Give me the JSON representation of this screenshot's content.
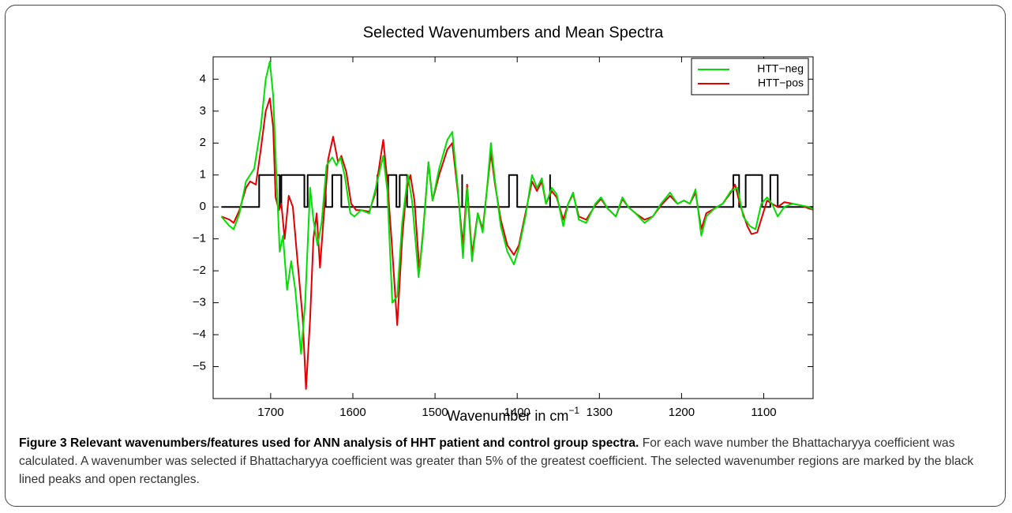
{
  "chart_data": {
    "type": "line",
    "title": "Selected Wavenumbers and Mean Spectra",
    "x_label": "Wavenumber in cm",
    "x_label_sup": "−1",
    "xlim": [
      1770,
      1040
    ],
    "xticks": [
      1700,
      1600,
      1500,
      1400,
      1300,
      1200,
      1100
    ],
    "ylim": [
      -6,
      4.7
    ],
    "yticks": [
      {
        "value": -5,
        "label": "−5"
      },
      {
        "value": -4,
        "label": "−4"
      },
      {
        "value": -3,
        "label": "−3"
      },
      {
        "value": -2,
        "label": "−2"
      },
      {
        "value": -1,
        "label": "−1"
      },
      0,
      1,
      2,
      3,
      4
    ],
    "grid": false,
    "legend": "top-right",
    "series": [
      {
        "name": "HTT−neg",
        "color": "#00e000",
        "x": [
          1760,
          1750,
          1745,
          1738,
          1730,
          1720,
          1712,
          1706,
          1701,
          1697,
          1693,
          1689,
          1685,
          1680,
          1675,
          1670,
          1663,
          1658,
          1652,
          1648,
          1643,
          1638,
          1632,
          1625,
          1620,
          1615,
          1610,
          1603,
          1598,
          1590,
          1580,
          1573,
          1563,
          1558,
          1552,
          1546,
          1540,
          1533,
          1528,
          1520,
          1515,
          1508,
          1503,
          1495,
          1485,
          1479,
          1472,
          1466,
          1461,
          1455,
          1448,
          1442,
          1437,
          1432,
          1427,
          1420,
          1412,
          1404,
          1398,
          1390,
          1382,
          1376,
          1370,
          1365,
          1358,
          1352,
          1344,
          1338,
          1332,
          1325,
          1316,
          1305,
          1298,
          1290,
          1280,
          1272,
          1265,
          1256,
          1245,
          1235,
          1225,
          1214,
          1205,
          1197,
          1190,
          1183,
          1176,
          1170,
          1160,
          1150,
          1140,
          1132,
          1125,
          1117,
          1110,
          1103,
          1096,
          1090,
          1083,
          1075,
          1065,
          1055,
          1045,
          1038
        ],
        "values": [
          -0.3,
          -0.6,
          -0.7,
          -0.2,
          0.8,
          1.2,
          2.5,
          4.0,
          4.55,
          3.5,
          1.0,
          -1.4,
          -0.9,
          -2.6,
          -1.7,
          -2.6,
          -4.6,
          -3.0,
          0.6,
          -0.4,
          -1.2,
          -0.5,
          1.3,
          1.55,
          1.3,
          1.55,
          1.0,
          -0.2,
          -0.3,
          -0.1,
          -0.2,
          0.5,
          1.6,
          0.5,
          -3.0,
          -2.8,
          -0.5,
          1.0,
          0.2,
          -2.2,
          -1.0,
          1.4,
          0.2,
          1.2,
          2.1,
          2.35,
          0.5,
          -1.6,
          0.6,
          -1.7,
          -0.2,
          -0.8,
          0.5,
          2.0,
          0.8,
          -0.6,
          -1.4,
          -1.8,
          -1.3,
          -0.3,
          1.0,
          0.6,
          0.9,
          0.1,
          0.6,
          0.4,
          -0.6,
          0.1,
          0.45,
          -0.4,
          -0.5,
          0.1,
          0.3,
          -0.05,
          -0.3,
          0.3,
          0,
          -0.2,
          -0.5,
          -0.3,
          0.1,
          0.45,
          0.1,
          0.2,
          0.1,
          0.55,
          -0.9,
          -0.3,
          -0.05,
          0.1,
          0.5,
          0.6,
          -0.3,
          -0.6,
          -0.7,
          0.1,
          0.3,
          0.1,
          -0.3,
          0,
          0.1,
          0.05,
          0,
          -0.1
        ]
      },
      {
        "name": "HTT−pos",
        "color": "#e00000",
        "x": [
          1760,
          1750,
          1745,
          1738,
          1730,
          1725,
          1718,
          1712,
          1706,
          1701,
          1697,
          1694,
          1690,
          1687,
          1683,
          1678,
          1673,
          1668,
          1661,
          1657,
          1652,
          1648,
          1644,
          1640,
          1636,
          1630,
          1624,
          1618,
          1614,
          1608,
          1602,
          1596,
          1590,
          1580,
          1573,
          1563,
          1558,
          1553,
          1546,
          1540,
          1535,
          1530,
          1525,
          1519,
          1514,
          1508,
          1503,
          1495,
          1485,
          1479,
          1472,
          1466,
          1461,
          1455,
          1448,
          1442,
          1437,
          1432,
          1427,
          1420,
          1412,
          1404,
          1398,
          1390,
          1382,
          1376,
          1370,
          1365,
          1358,
          1352,
          1344,
          1338,
          1332,
          1325,
          1316,
          1305,
          1298,
          1290,
          1280,
          1272,
          1265,
          1256,
          1245,
          1235,
          1225,
          1214,
          1205,
          1197,
          1190,
          1183,
          1176,
          1170,
          1160,
          1150,
          1140,
          1135,
          1128,
          1120,
          1115,
          1108,
          1102,
          1096,
          1090,
          1083,
          1075,
          1065,
          1055,
          1045,
          1038
        ],
        "values": [
          -0.3,
          -0.4,
          -0.5,
          -0.1,
          0.6,
          0.8,
          0.7,
          1.8,
          3.0,
          3.4,
          2.5,
          0.3,
          -0.1,
          0.1,
          -1.0,
          0.35,
          0,
          -1.5,
          -3.5,
          -5.7,
          -3.5,
          -1.0,
          -0.2,
          -1.9,
          -0.5,
          1.5,
          2.2,
          1.4,
          1.6,
          1.1,
          0.1,
          -0.1,
          -0.1,
          -0.15,
          0.4,
          2.1,
          0.8,
          -1.0,
          -3.7,
          -1.0,
          0.5,
          1.0,
          0.2,
          -2.0,
          -0.6,
          1.4,
          0.2,
          1.0,
          1.8,
          2.0,
          0.4,
          -1.2,
          0.7,
          -1.5,
          -0.2,
          -0.7,
          0.5,
          1.7,
          0.7,
          -0.4,
          -1.2,
          -1.5,
          -1.2,
          -0.2,
          0.8,
          0.5,
          0.8,
          0.1,
          0.5,
          0.3,
          -0.4,
          0.1,
          0.4,
          -0.3,
          -0.4,
          0.05,
          0.25,
          -0.05,
          -0.3,
          0.25,
          0,
          -0.2,
          -0.4,
          -0.3,
          0.05,
          0.35,
          0.1,
          0.2,
          0.1,
          0.45,
          -0.7,
          -0.2,
          -0.05,
          0.1,
          0.45,
          0.7,
          0,
          -0.6,
          -0.85,
          -0.8,
          -0.3,
          0.2,
          0.1,
          0,
          0.15,
          0.1,
          0.05,
          -0.05,
          -0.1
        ]
      },
      {
        "color": "#000000",
        "x": [
          1760,
          1714,
          1714,
          1689,
          1689,
          1687,
          1687,
          1659,
          1659,
          1655,
          1655,
          1633,
          1633,
          1625,
          1625,
          1614,
          1614,
          1570,
          1570,
          1570,
          1557,
          1557,
          1547,
          1547,
          1543,
          1543,
          1534,
          1534,
          1467,
          1467,
          1467,
          1410,
          1410,
          1400,
          1400,
          1360,
          1360,
          1360,
          1137,
          1137,
          1130,
          1130,
          1122,
          1122,
          1102,
          1102,
          1092,
          1092,
          1083,
          1083,
          1038
        ],
        "values": [
          0,
          0,
          1,
          1,
          0,
          0,
          1,
          1,
          0,
          0,
          1,
          1,
          0,
          0,
          1,
          1,
          0,
          0,
          1,
          0,
          0,
          1,
          1,
          0,
          0,
          1,
          1,
          0,
          0,
          1,
          0,
          0,
          1,
          1,
          0,
          0,
          1,
          0,
          0,
          1,
          1,
          0,
          0,
          1,
          1,
          0,
          0,
          1,
          1,
          0,
          0
        ]
      }
    ]
  },
  "caption": {
    "title": "Figure 3 Relevant wavenumbers/features used for ANN analysis of HHT patient and control group spectra.",
    "text": "For each wave number the Bhattacharyya coefficient was calculated. A wavenumber was selected if Bhattacharyya coefficient was greater than 5% of the greatest coefficient. The selected wavenumber regions are marked by the black lined peaks and open rectangles."
  }
}
